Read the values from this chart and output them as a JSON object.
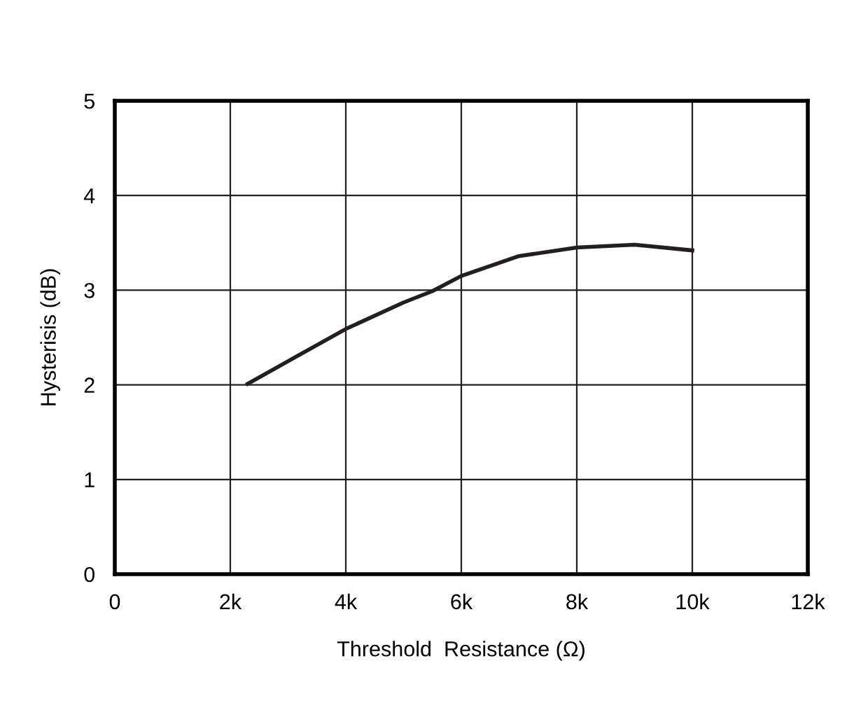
{
  "chart_data": {
    "type": "line",
    "xlabel": "Threshold  Resistance (Ω)",
    "ylabel": "Hysterisis (dB)",
    "series": [
      {
        "color": "#231f20",
        "x": [
          2.3,
          3,
          4,
          5,
          5.5,
          6,
          7,
          8,
          9,
          10
        ],
        "values": [
          2.01,
          2.25,
          2.59,
          2.87,
          2.99,
          3.15,
          3.36,
          3.45,
          3.48,
          3.42
        ]
      }
    ],
    "xlim": [
      0,
      12
    ],
    "xticks": [
      0,
      {
        "value": 2,
        "label": "2k"
      },
      {
        "value": 4,
        "label": "4k"
      },
      {
        "value": 6,
        "label": "6k"
      },
      {
        "value": 8,
        "label": "8k"
      },
      {
        "value": 10,
        "label": "10k"
      },
      {
        "value": 12,
        "label": "12k"
      }
    ],
    "ylim": [
      0,
      5
    ],
    "yticks": [
      0,
      1,
      2,
      3,
      4,
      5
    ],
    "grid": true,
    "line_style": "solid",
    "marker": "none"
  }
}
